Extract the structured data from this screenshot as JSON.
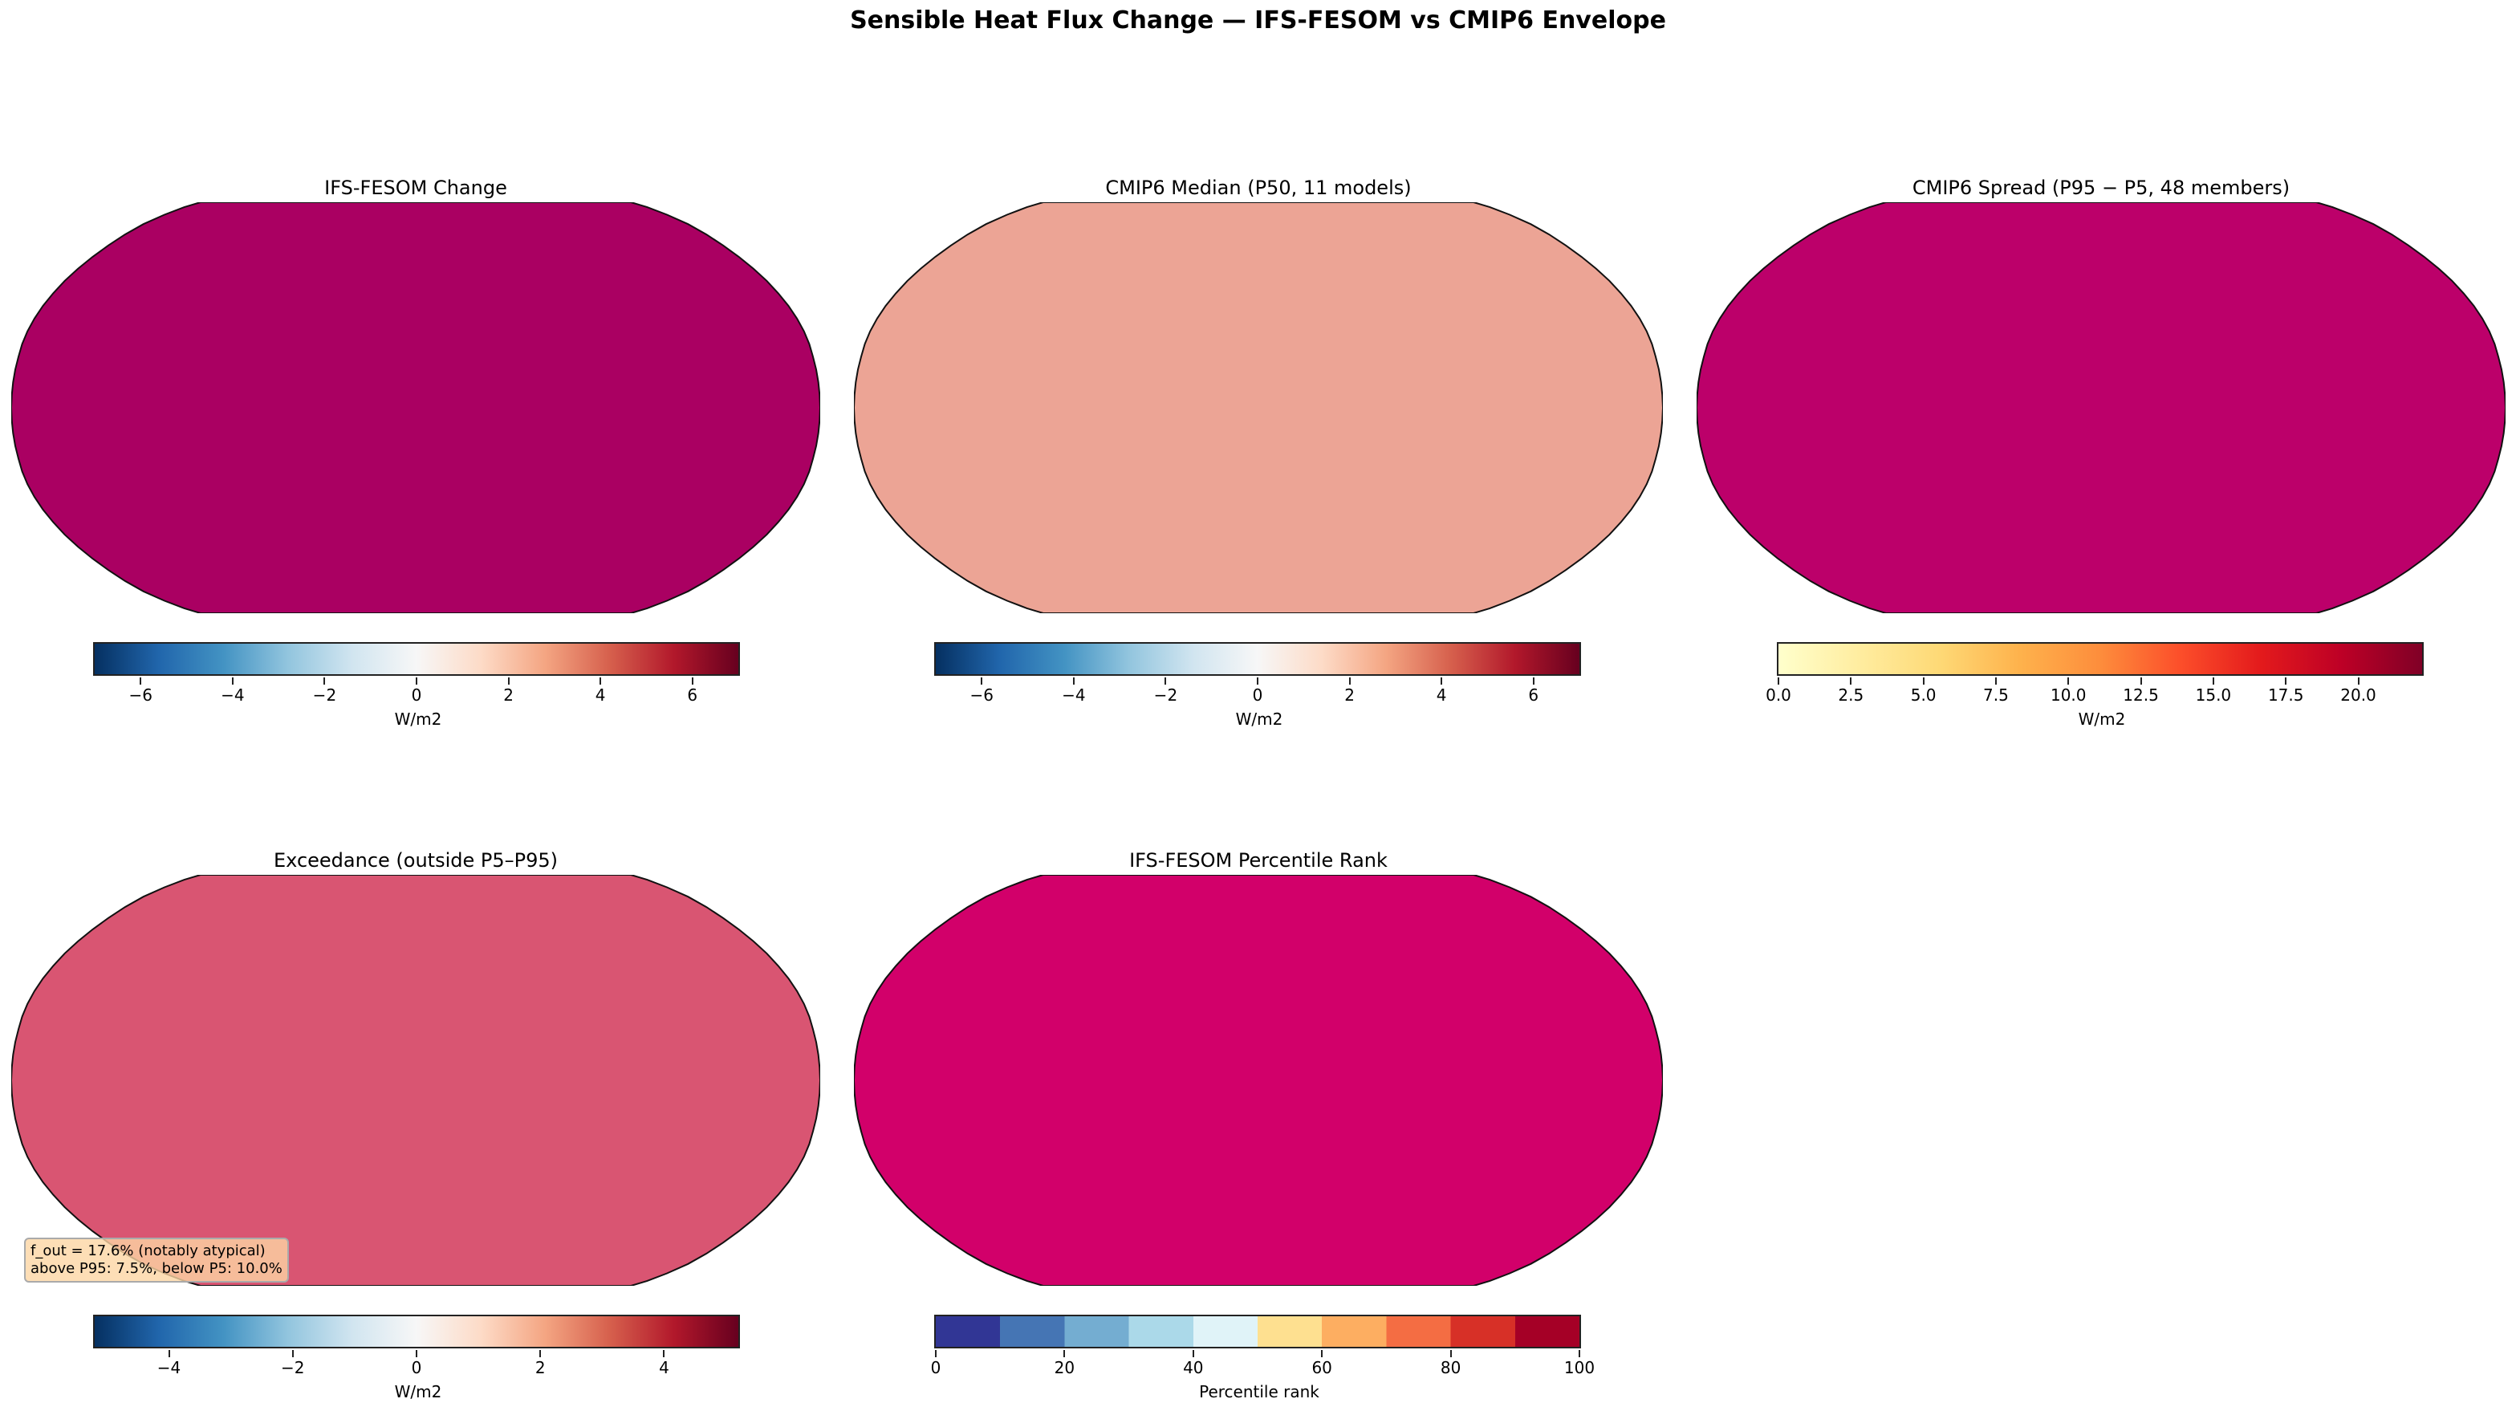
{
  "suptitle": "Sensible Heat Flux Change — IFS-FESOM vs CMIP6 Envelope",
  "colormaps": {
    "RdBu_r": [
      "#053061",
      "#2166ac",
      "#4393c3",
      "#92c5de",
      "#d1e5f0",
      "#f7f7f7",
      "#fddbc7",
      "#f4a582",
      "#d6604d",
      "#b2182b",
      "#67001f"
    ],
    "YlOrRd": [
      "#ffffcc",
      "#ffeda0",
      "#fed976",
      "#feb24c",
      "#fd8d3c",
      "#fc4e2a",
      "#e31a1c",
      "#bd0026",
      "#800026"
    ],
    "RdYlBu_r_10": [
      "#313695",
      "#4575b4",
      "#74add1",
      "#abd9e9",
      "#e0f3f8",
      "#fee090",
      "#fdae61",
      "#f46d43",
      "#d73027",
      "#a50026"
    ]
  },
  "panels": [
    {
      "title": "IFS-FESOM Change",
      "cmap": "RdBu_r",
      "pattern": "diverging-strong",
      "colorbar": {
        "min": -7,
        "max": 7,
        "ticks": [
          -6,
          -4,
          -2,
          0,
          2,
          4,
          6
        ],
        "tick_labels": [
          "−6",
          "−4",
          "−2",
          "0",
          "2",
          "4",
          "6"
        ],
        "label": "W/m2",
        "discrete": false
      }
    },
    {
      "title": "CMIP6 Median (P50, 11 models)",
      "cmap": "RdBu_r",
      "pattern": "diverging-weak",
      "colorbar": {
        "min": -7,
        "max": 7,
        "ticks": [
          -6,
          -4,
          -2,
          0,
          2,
          4,
          6
        ],
        "tick_labels": [
          "−6",
          "−4",
          "−2",
          "0",
          "2",
          "4",
          "6"
        ],
        "label": "W/m2",
        "discrete": false
      }
    },
    {
      "title": "CMIP6 Spread (P95 − P5, 48 members)",
      "cmap": "YlOrRd",
      "pattern": "sequential",
      "colorbar": {
        "min": 0,
        "max": 22.2,
        "ticks": [
          0,
          2.5,
          5,
          7.5,
          10,
          12.5,
          15,
          17.5,
          20
        ],
        "tick_labels": [
          "0.0",
          "2.5",
          "5.0",
          "7.5",
          "10.0",
          "12.5",
          "15.0",
          "17.5",
          "20.0"
        ],
        "label": "W/m2",
        "discrete": false
      }
    },
    {
      "title": "Exceedance (outside P5–P95)",
      "cmap": "RdBu_r",
      "pattern": "sparse",
      "colorbar": {
        "min": -5.2,
        "max": 5.2,
        "ticks": [
          -4,
          -2,
          0,
          2,
          4
        ],
        "tick_labels": [
          "−4",
          "−2",
          "0",
          "2",
          "4"
        ],
        "label": "W/m2",
        "discrete": false
      },
      "annotation": {
        "line1": "f_out = 17.6% (notably atypical)",
        "line2": "above P95: 7.5%, below P5: 10.0%"
      }
    },
    {
      "title": "IFS-FESOM Percentile Rank",
      "cmap": "RdYlBu_r_10",
      "pattern": "discrete",
      "colorbar": {
        "min": 0,
        "max": 100,
        "ticks": [
          0,
          20,
          40,
          60,
          80,
          100
        ],
        "tick_labels": [
          "0",
          "20",
          "40",
          "60",
          "80",
          "100"
        ],
        "label": "Percentile rank",
        "discrete": true
      }
    }
  ]
}
